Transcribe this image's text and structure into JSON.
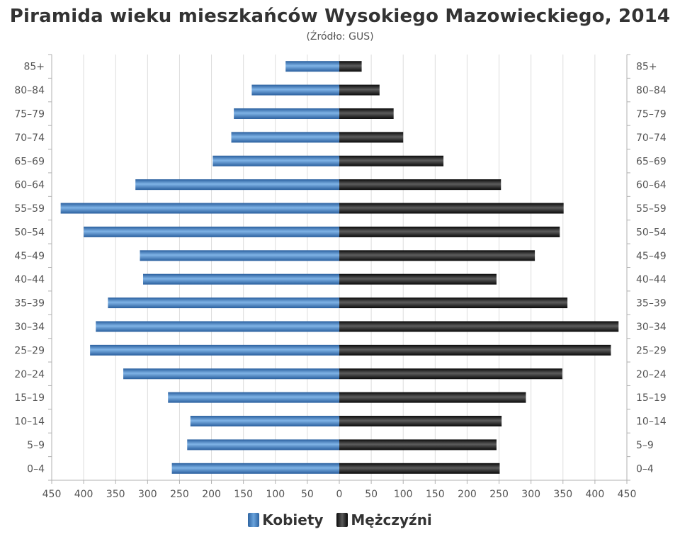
{
  "chart_data": {
    "type": "bar",
    "orientation": "horizontal-pyramid",
    "title": "Piramida wieku mieszkańców Wysokiego Mazowieckiego, 2014",
    "subtitle": "(Źródło: GUS)",
    "categories": [
      "0–4",
      "5–9",
      "10–14",
      "15–19",
      "20–24",
      "25–29",
      "30–34",
      "35–39",
      "40–44",
      "45–49",
      "50–54",
      "55–59",
      "60–64",
      "65–69",
      "70–74",
      "75–79",
      "80–84",
      "85+"
    ],
    "series": [
      {
        "name": "Kobiety",
        "color": "#3a78c0",
        "values": [
          262,
          238,
          233,
          268,
          338,
          390,
          381,
          362,
          307,
          312,
          400,
          436,
          319,
          198,
          169,
          165,
          137,
          84
        ]
      },
      {
        "name": "Mężczyźni",
        "color": "#111111",
        "values": [
          251,
          246,
          254,
          292,
          349,
          425,
          437,
          357,
          246,
          306,
          345,
          351,
          253,
          163,
          100,
          85,
          63,
          35
        ]
      }
    ],
    "xlim": [
      -450,
      450
    ],
    "x_ticks": [
      "450",
      "400",
      "350",
      "300",
      "250",
      "200",
      "150",
      "100",
      "50",
      "0",
      "50",
      "100",
      "150",
      "200",
      "250",
      "300",
      "350",
      "400",
      "450"
    ],
    "grid": true,
    "legend_position": "bottom"
  }
}
